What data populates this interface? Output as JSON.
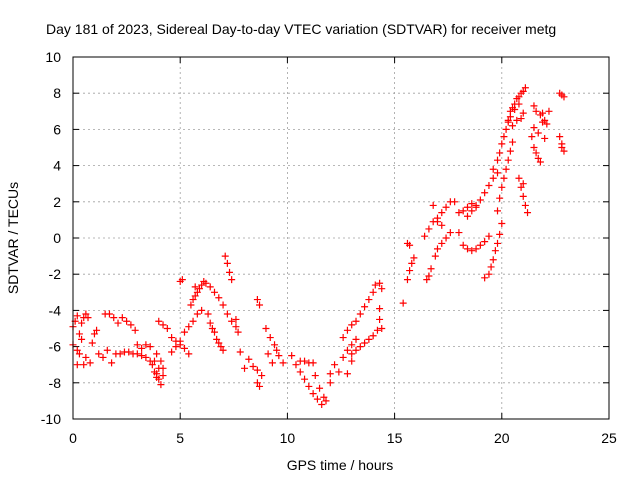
{
  "chart_data": {
    "type": "scatter",
    "title": "Day 181 of 2023, Sidereal Day-to-day VTEC variation (SDTVAR) for receiver metg",
    "xlabel": "GPS time / hours",
    "ylabel": "SDTVAR / TECUs",
    "xlim": [
      0,
      25
    ],
    "ylim": [
      -10,
      10
    ],
    "xticks": [
      0,
      5,
      10,
      15,
      20,
      25
    ],
    "yticks": [
      -10,
      -8,
      -6,
      -4,
      -2,
      0,
      2,
      4,
      6,
      8,
      10
    ],
    "grid": true,
    "marker": "+",
    "color": "#ff0000",
    "series": [
      {
        "name": "SDTVAR",
        "values": [
          [
            0.0,
            -4.9
          ],
          [
            0.1,
            -4.6
          ],
          [
            0.2,
            -4.3
          ],
          [
            0.3,
            -5.3
          ],
          [
            0.4,
            -4.7
          ],
          [
            0.5,
            -4.4
          ],
          [
            0.6,
            -4.2
          ],
          [
            0.7,
            -4.4
          ],
          [
            0.0,
            -5.9
          ],
          [
            0.2,
            -6.2
          ],
          [
            0.4,
            -5.6
          ],
          [
            0.6,
            -6.6
          ],
          [
            0.8,
            -6.9
          ],
          [
            0.5,
            -7.0
          ],
          [
            0.3,
            -6.4
          ],
          [
            0.2,
            -7.0
          ],
          [
            0.9,
            -5.8
          ],
          [
            1.0,
            -5.3
          ],
          [
            1.1,
            -5.1
          ],
          [
            1.2,
            -6.4
          ],
          [
            1.4,
            -6.6
          ],
          [
            1.6,
            -6.2
          ],
          [
            1.8,
            -6.9
          ],
          [
            2.0,
            -6.4
          ],
          [
            1.5,
            -4.2
          ],
          [
            1.7,
            -4.2
          ],
          [
            1.9,
            -4.4
          ],
          [
            2.1,
            -4.7
          ],
          [
            2.3,
            -4.4
          ],
          [
            2.5,
            -4.6
          ],
          [
            2.7,
            -4.8
          ],
          [
            2.9,
            -5.1
          ],
          [
            2.2,
            -6.4
          ],
          [
            2.4,
            -6.3
          ],
          [
            2.6,
            -6.3
          ],
          [
            2.8,
            -6.4
          ],
          [
            3.0,
            -6.4
          ],
          [
            3.2,
            -6.5
          ],
          [
            3.4,
            -6.6
          ],
          [
            3.6,
            -6.8
          ],
          [
            3.0,
            -5.9
          ],
          [
            3.2,
            -6.1
          ],
          [
            3.4,
            -5.9
          ],
          [
            3.6,
            -6.0
          ],
          [
            3.8,
            -6.8
          ],
          [
            3.9,
            -7.5
          ],
          [
            4.0,
            -7.8
          ],
          [
            4.1,
            -8.1
          ],
          [
            3.7,
            -7.0
          ],
          [
            3.8,
            -7.4
          ],
          [
            3.9,
            -7.7
          ],
          [
            4.0,
            -7.2
          ],
          [
            4.2,
            -7.6
          ],
          [
            4.1,
            -6.8
          ],
          [
            3.9,
            -6.4
          ],
          [
            4.2,
            -7.2
          ],
          [
            4.0,
            -4.6
          ],
          [
            4.2,
            -4.8
          ],
          [
            4.4,
            -5.0
          ],
          [
            4.6,
            -5.5
          ],
          [
            4.8,
            -5.7
          ],
          [
            5.0,
            -5.9
          ],
          [
            5.2,
            -6.1
          ],
          [
            5.4,
            -6.4
          ],
          [
            4.6,
            -6.3
          ],
          [
            4.8,
            -6.0
          ],
          [
            5.0,
            -5.7
          ],
          [
            5.2,
            -5.2
          ],
          [
            5.4,
            -4.9
          ],
          [
            5.6,
            -4.6
          ],
          [
            5.8,
            -4.2
          ],
          [
            6.0,
            -4.0
          ],
          [
            5.5,
            -3.7
          ],
          [
            5.6,
            -3.4
          ],
          [
            5.7,
            -3.2
          ],
          [
            5.8,
            -3.0
          ],
          [
            5.9,
            -2.8
          ],
          [
            6.0,
            -2.6
          ],
          [
            6.1,
            -2.4
          ],
          [
            5.7,
            -2.7
          ],
          [
            6.2,
            -2.5
          ],
          [
            6.4,
            -2.7
          ],
          [
            6.6,
            -3.0
          ],
          [
            6.8,
            -3.3
          ],
          [
            7.0,
            -3.7
          ],
          [
            7.2,
            -4.2
          ],
          [
            7.4,
            -4.6
          ],
          [
            7.6,
            -4.9
          ],
          [
            6.3,
            -4.2
          ],
          [
            6.4,
            -4.7
          ],
          [
            6.5,
            -5.0
          ],
          [
            6.6,
            -5.2
          ],
          [
            6.7,
            -5.6
          ],
          [
            6.8,
            -5.8
          ],
          [
            6.9,
            -6.0
          ],
          [
            7.0,
            -6.2
          ],
          [
            7.1,
            -1.0
          ],
          [
            7.2,
            -1.4
          ],
          [
            7.3,
            -1.9
          ],
          [
            7.4,
            -2.3
          ],
          [
            5.1,
            -2.3
          ],
          [
            5.0,
            -2.4
          ],
          [
            7.6,
            -4.5
          ],
          [
            7.7,
            -5.2
          ],
          [
            7.8,
            -6.3
          ],
          [
            8.0,
            -7.2
          ],
          [
            8.2,
            -6.7
          ],
          [
            8.4,
            -7.1
          ],
          [
            8.6,
            -7.3
          ],
          [
            8.6,
            -3.4
          ],
          [
            8.7,
            -3.7
          ],
          [
            8.6,
            -8.0
          ],
          [
            8.7,
            -8.2
          ],
          [
            8.8,
            -7.6
          ],
          [
            9.0,
            -5.0
          ],
          [
            9.2,
            -5.5
          ],
          [
            9.4,
            -5.9
          ],
          [
            9.6,
            -6.5
          ],
          [
            9.8,
            -6.9
          ],
          [
            9.1,
            -6.4
          ],
          [
            9.3,
            -6.9
          ],
          [
            9.5,
            -6.2
          ],
          [
            10.2,
            -6.5
          ],
          [
            10.4,
            -7.0
          ],
          [
            10.6,
            -7.4
          ],
          [
            10.8,
            -7.8
          ],
          [
            11.0,
            -8.2
          ],
          [
            11.2,
            -8.6
          ],
          [
            11.4,
            -8.9
          ],
          [
            11.6,
            -9.2
          ],
          [
            10.6,
            -6.8
          ],
          [
            10.8,
            -6.8
          ],
          [
            11.0,
            -6.9
          ],
          [
            11.2,
            -6.9
          ],
          [
            11.3,
            -7.6
          ],
          [
            11.5,
            -8.3
          ],
          [
            11.7,
            -8.8
          ],
          [
            11.8,
            -9.0
          ],
          [
            12.0,
            -8.0
          ],
          [
            12.0,
            -7.5
          ],
          [
            12.2,
            -7.0
          ],
          [
            12.4,
            -7.4
          ],
          [
            12.6,
            -6.6
          ],
          [
            12.8,
            -6.2
          ],
          [
            13.0,
            -5.9
          ],
          [
            13.2,
            -5.6
          ],
          [
            12.6,
            -5.5
          ],
          [
            12.8,
            -5.1
          ],
          [
            13.0,
            -4.8
          ],
          [
            13.2,
            -4.6
          ],
          [
            13.4,
            -4.2
          ],
          [
            13.6,
            -3.8
          ],
          [
            13.8,
            -3.4
          ],
          [
            14.0,
            -3.0
          ],
          [
            13.0,
            -6.4
          ],
          [
            13.2,
            -6.2
          ],
          [
            13.4,
            -6.0
          ],
          [
            13.6,
            -5.8
          ],
          [
            13.8,
            -5.6
          ],
          [
            14.0,
            -5.4
          ],
          [
            14.2,
            -5.1
          ],
          [
            14.1,
            -2.6
          ],
          [
            12.8,
            -7.5
          ],
          [
            13.0,
            -6.8
          ],
          [
            14.3,
            -2.5
          ],
          [
            14.4,
            -2.8
          ],
          [
            14.3,
            -3.9
          ],
          [
            14.4,
            -5.0
          ],
          [
            14.3,
            -4.5
          ],
          [
            15.4,
            -3.6
          ],
          [
            15.6,
            -2.3
          ],
          [
            15.7,
            -1.8
          ],
          [
            15.8,
            -1.4
          ],
          [
            15.9,
            -1.1
          ],
          [
            15.6,
            -0.3
          ],
          [
            15.7,
            -0.4
          ],
          [
            16.5,
            -2.3
          ],
          [
            16.6,
            -2.1
          ],
          [
            16.7,
            -1.7
          ],
          [
            16.9,
            -1.0
          ],
          [
            17.0,
            -0.6
          ],
          [
            17.2,
            -0.3
          ],
          [
            17.4,
            0.0
          ],
          [
            17.6,
            0.3
          ],
          [
            16.4,
            0.1
          ],
          [
            16.6,
            0.5
          ],
          [
            16.8,
            0.9
          ],
          [
            17.0,
            1.1
          ],
          [
            17.2,
            1.4
          ],
          [
            17.4,
            1.7
          ],
          [
            17.6,
            2.0
          ],
          [
            17.8,
            2.0
          ],
          [
            16.8,
            1.8
          ],
          [
            17.0,
            0.9
          ],
          [
            17.2,
            0.7
          ],
          [
            18.0,
            1.4
          ],
          [
            18.2,
            1.5
          ],
          [
            18.4,
            1.7
          ],
          [
            18.6,
            1.9
          ],
          [
            18.8,
            1.7
          ],
          [
            18.0,
            0.3
          ],
          [
            18.2,
            -0.4
          ],
          [
            18.4,
            -0.6
          ],
          [
            18.6,
            -0.7
          ],
          [
            18.8,
            -0.6
          ],
          [
            19.0,
            -0.4
          ],
          [
            19.2,
            -0.2
          ],
          [
            19.4,
            0.1
          ],
          [
            18.4,
            1.2
          ],
          [
            18.6,
            1.5
          ],
          [
            18.8,
            1.8
          ],
          [
            19.0,
            2.1
          ],
          [
            19.2,
            2.5
          ],
          [
            19.4,
            2.9
          ],
          [
            19.6,
            3.3
          ],
          [
            19.8,
            3.6
          ],
          [
            19.2,
            -2.2
          ],
          [
            19.4,
            -2.0
          ],
          [
            19.5,
            -1.6
          ],
          [
            19.6,
            -1.2
          ],
          [
            19.7,
            -0.7
          ],
          [
            19.8,
            -0.3
          ],
          [
            19.9,
            0.2
          ],
          [
            20.0,
            0.8
          ],
          [
            19.6,
            3.8
          ],
          [
            19.8,
            4.3
          ],
          [
            19.9,
            4.7
          ],
          [
            20.0,
            5.2
          ],
          [
            20.1,
            5.6
          ],
          [
            20.2,
            6.0
          ],
          [
            20.3,
            6.4
          ],
          [
            20.4,
            6.7
          ],
          [
            19.8,
            1.5
          ],
          [
            19.9,
            2.2
          ],
          [
            20.0,
            2.8
          ],
          [
            20.1,
            3.3
          ],
          [
            20.2,
            3.8
          ],
          [
            20.3,
            4.3
          ],
          [
            20.4,
            4.8
          ],
          [
            20.5,
            5.3
          ],
          [
            20.4,
            7.0
          ],
          [
            20.5,
            7.2
          ],
          [
            20.6,
            7.4
          ],
          [
            20.7,
            7.7
          ],
          [
            20.8,
            7.8
          ],
          [
            20.9,
            8.0
          ],
          [
            21.0,
            8.1
          ],
          [
            21.1,
            8.3
          ],
          [
            20.3,
            6.5
          ],
          [
            20.5,
            6.2
          ],
          [
            20.7,
            6.5
          ],
          [
            20.9,
            6.6
          ],
          [
            21.0,
            6.9
          ],
          [
            20.6,
            7.1
          ],
          [
            20.8,
            7.4
          ],
          [
            20.8,
            3.3
          ],
          [
            20.9,
            2.8
          ],
          [
            21.0,
            2.3
          ],
          [
            21.1,
            1.8
          ],
          [
            21.2,
            1.4
          ],
          [
            21.0,
            3.0
          ],
          [
            21.4,
            5.6
          ],
          [
            21.5,
            5.0
          ],
          [
            21.6,
            4.7
          ],
          [
            21.7,
            4.4
          ],
          [
            21.8,
            4.2
          ],
          [
            21.5,
            6.1
          ],
          [
            21.7,
            5.8
          ],
          [
            21.9,
            6.4
          ],
          [
            21.6,
            7.0
          ],
          [
            21.8,
            6.8
          ],
          [
            22.0,
            6.5
          ],
          [
            22.1,
            6.3
          ],
          [
            22.0,
            5.5
          ],
          [
            21.9,
            6.9
          ],
          [
            22.2,
            7.0
          ],
          [
            21.5,
            7.3
          ],
          [
            22.7,
            8.0
          ],
          [
            22.8,
            7.9
          ],
          [
            22.9,
            7.8
          ],
          [
            22.7,
            5.6
          ],
          [
            22.8,
            5.2
          ],
          [
            22.9,
            4.8
          ],
          [
            22.8,
            5.0
          ]
        ]
      }
    ]
  }
}
